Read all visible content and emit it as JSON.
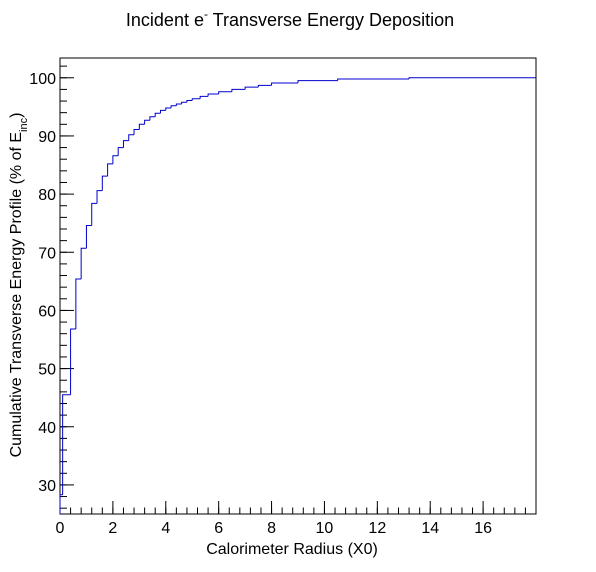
{
  "chart_data": {
    "type": "histogram",
    "title": [
      "Incident e",
      "-",
      " Transverse Energy Deposition"
    ],
    "xlabel": "Calorimeter Radius (X0)",
    "ylabel": [
      "Cumulative Transverse Energy Profile (% of E",
      "inc",
      ")"
    ],
    "bins": [
      0,
      0.1,
      0.4,
      0.6,
      0.8,
      1.0,
      1.2,
      1.4,
      1.6,
      1.8,
      2.0,
      2.2,
      2.4,
      2.6,
      2.8,
      3.0,
      3.2,
      3.4,
      3.6,
      3.8,
      4.0,
      4.2,
      4.4,
      4.6,
      4.8,
      5.0,
      5.3,
      5.6,
      6.0,
      6.5,
      7.0,
      7.5,
      8.0,
      9.0,
      10.5,
      13.2,
      18
    ],
    "values": [
      28.3,
      45.5,
      56.8,
      65.4,
      70.7,
      74.6,
      78.4,
      80.6,
      83.1,
      85.2,
      86.6,
      88.0,
      89.2,
      90.2,
      91.1,
      92.0,
      92.7,
      93.3,
      93.9,
      94.4,
      94.8,
      95.2,
      95.5,
      95.8,
      96.1,
      96.4,
      96.8,
      97.2,
      97.6,
      98.0,
      98.4,
      98.7,
      99.1,
      99.5,
      99.8,
      100.0
    ],
    "color": "#0000cc",
    "xlim": [
      0,
      18
    ],
    "ylim": [
      25,
      103.4
    ],
    "xticks": [
      0,
      2,
      4,
      6,
      8,
      10,
      12,
      14,
      16
    ],
    "yticks": [
      30,
      40,
      50,
      60,
      70,
      80,
      90,
      100
    ]
  }
}
